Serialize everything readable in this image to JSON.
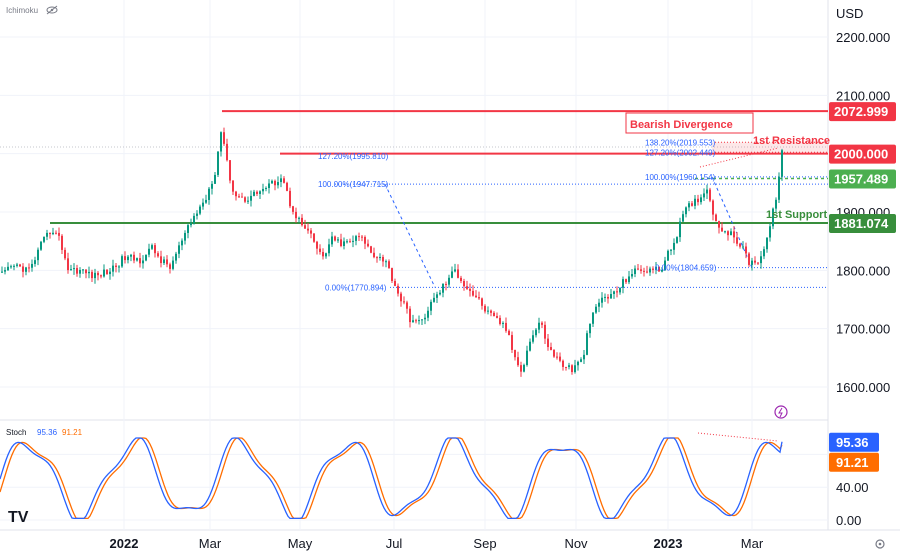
{
  "chart_data": {
    "type": "candlestick",
    "indicator_name": "Ichimoku",
    "currency": "USD",
    "price_axis": {
      "ylim": [
        1580,
        2240
      ],
      "ticks": [
        "2200.000",
        "2100.000",
        "2000.000",
        "1900.000",
        "1800.000",
        "1700.000",
        "1600.000"
      ]
    },
    "x_ticks": [
      "2022",
      "Mar",
      "May",
      "Jul",
      "Sep",
      "Nov",
      "2023",
      "Mar"
    ],
    "price_path": [
      {
        "x": 0,
        "y": 1790
      },
      {
        "x": 15,
        "y": 1808
      },
      {
        "x": 30,
        "y": 1800
      },
      {
        "x": 40,
        "y": 1840
      },
      {
        "x": 52,
        "y": 1872
      },
      {
        "x": 60,
        "y": 1852
      },
      {
        "x": 68,
        "y": 1803
      },
      {
        "x": 80,
        "y": 1800
      },
      {
        "x": 95,
        "y": 1790
      },
      {
        "x": 110,
        "y": 1800
      },
      {
        "x": 125,
        "y": 1822
      },
      {
        "x": 140,
        "y": 1818
      },
      {
        "x": 152,
        "y": 1838
      },
      {
        "x": 162,
        "y": 1815
      },
      {
        "x": 170,
        "y": 1805
      },
      {
        "x": 182,
        "y": 1850
      },
      {
        "x": 195,
        "y": 1895
      },
      {
        "x": 205,
        "y": 1920
      },
      {
        "x": 215,
        "y": 1970
      },
      {
        "x": 222,
        "y": 2050
      },
      {
        "x": 226,
        "y": 1990
      },
      {
        "x": 234,
        "y": 1930
      },
      {
        "x": 245,
        "y": 1922
      },
      {
        "x": 258,
        "y": 1935
      },
      {
        "x": 270,
        "y": 1945
      },
      {
        "x": 282,
        "y": 1962
      },
      {
        "x": 290,
        "y": 1915
      },
      {
        "x": 300,
        "y": 1882
      },
      {
        "x": 312,
        "y": 1855
      },
      {
        "x": 322,
        "y": 1820
      },
      {
        "x": 332,
        "y": 1852
      },
      {
        "x": 345,
        "y": 1845
      },
      {
        "x": 360,
        "y": 1858
      },
      {
        "x": 372,
        "y": 1830
      },
      {
        "x": 385,
        "y": 1818
      },
      {
        "x": 398,
        "y": 1762
      },
      {
        "x": 410,
        "y": 1718
      },
      {
        "x": 420,
        "y": 1708
      },
      {
        "x": 430,
        "y": 1740
      },
      {
        "x": 442,
        "y": 1770
      },
      {
        "x": 455,
        "y": 1800
      },
      {
        "x": 465,
        "y": 1775
      },
      {
        "x": 477,
        "y": 1752
      },
      {
        "x": 490,
        "y": 1722
      },
      {
        "x": 505,
        "y": 1705
      },
      {
        "x": 515,
        "y": 1650
      },
      {
        "x": 522,
        "y": 1630
      },
      {
        "x": 530,
        "y": 1680
      },
      {
        "x": 540,
        "y": 1712
      },
      {
        "x": 550,
        "y": 1662
      },
      {
        "x": 562,
        "y": 1640
      },
      {
        "x": 572,
        "y": 1630
      },
      {
        "x": 582,
        "y": 1645
      },
      {
        "x": 590,
        "y": 1710
      },
      {
        "x": 600,
        "y": 1750
      },
      {
        "x": 615,
        "y": 1760
      },
      {
        "x": 630,
        "y": 1795
      },
      {
        "x": 645,
        "y": 1802
      },
      {
        "x": 660,
        "y": 1800
      },
      {
        "x": 672,
        "y": 1840
      },
      {
        "x": 685,
        "y": 1902
      },
      {
        "x": 697,
        "y": 1922
      },
      {
        "x": 708,
        "y": 1940
      },
      {
        "x": 716,
        "y": 1880
      },
      {
        "x": 728,
        "y": 1865
      },
      {
        "x": 740,
        "y": 1845
      },
      {
        "x": 750,
        "y": 1812
      },
      {
        "x": 760,
        "y": 1820
      },
      {
        "x": 768,
        "y": 1860
      },
      {
        "x": 775,
        "y": 1915
      },
      {
        "x": 782,
        "y": 2000
      }
    ],
    "horizontal_levels": [
      {
        "label": "2072.999",
        "value": 2072.999,
        "color": "#f23645"
      },
      {
        "label": "2000.000",
        "value": 2000.0,
        "color": "#f23645"
      },
      {
        "label": "1957.489",
        "value": 1957.489,
        "color": "#4caf50"
      },
      {
        "label": "1881.074",
        "value": 1881.074,
        "color": "#388e3c"
      }
    ],
    "fib_left": [
      {
        "text": "127.20%(1995.810)",
        "value": 1995.81
      },
      {
        "text": "100.00%(1947.715)",
        "value": 1947.715
      },
      {
        "text": "0.00%(1770.894)",
        "value": 1770.894
      }
    ],
    "fib_right": [
      {
        "text": "138.20%(2019.553)",
        "value": 2019.553
      },
      {
        "text": "127.20%(2002.449)",
        "value": 2002.449
      },
      {
        "text": "100.00%(1960.154)",
        "value": 1960.154
      },
      {
        "text": "0.00%(1804.659)",
        "value": 1804.659
      }
    ],
    "annotations": {
      "bearish_divergence": "Bearish Divergence",
      "resistance": "1st Resistance",
      "support": "1st Support"
    },
    "stoch": {
      "name": "Stoch",
      "k_value": "95.36",
      "d_value": "91.21",
      "ylim": [
        0,
        100
      ],
      "ticks": [
        "40.00",
        "0.00"
      ],
      "k_color": "#2962ff",
      "d_color": "#ff6d00"
    },
    "colors": {
      "up": "#089981",
      "down": "#f23645"
    }
  },
  "logo": "TV"
}
